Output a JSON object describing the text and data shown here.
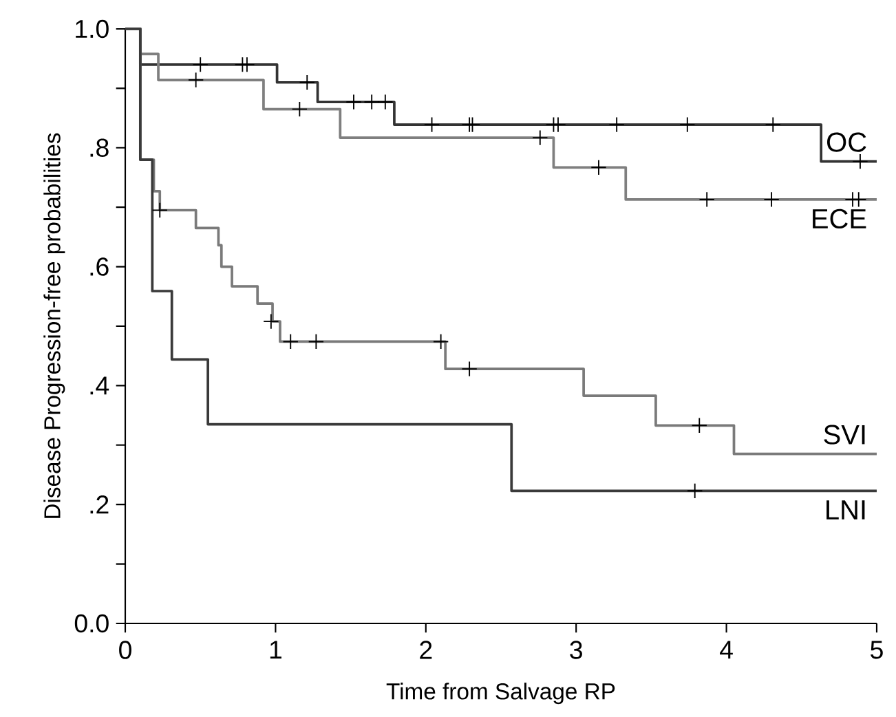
{
  "chart_data": {
    "type": "step",
    "xlabel": "Time from Salvage RP",
    "ylabel": "Disease Progression-free probabilities",
    "xlim": [
      0,
      5
    ],
    "ylim": [
      0,
      1
    ],
    "xticks": [
      0,
      1,
      2,
      3,
      4,
      5
    ],
    "yticks": [
      {
        "value": 0,
        "label": "0.0"
      },
      {
        "value": 0.1,
        "label": null
      },
      {
        "value": 0.2,
        "label": ".2"
      },
      {
        "value": 0.3,
        "label": null
      },
      {
        "value": 0.4,
        "label": ".4"
      },
      {
        "value": 0.5,
        "label": null
      },
      {
        "value": 0.6,
        "label": ".6"
      },
      {
        "value": 0.7,
        "label": null
      },
      {
        "value": 0.8,
        "label": ".8"
      },
      {
        "value": 0.9,
        "label": null
      },
      {
        "value": 1.0,
        "label": "1.0"
      }
    ],
    "grid": false,
    "series": [
      {
        "name": "OC",
        "color": "#333333",
        "x": [
          0,
          0.1,
          1.01,
          1.28,
          1.79,
          4.63,
          5
        ],
        "values": [
          1.0,
          0.94,
          0.91,
          0.877,
          0.839,
          0.777,
          0.777
        ]
      },
      {
        "name": "ECE",
        "color": "#7f7f7f",
        "x": [
          0,
          0.1,
          0.22,
          0.92,
          1.43,
          2.85,
          3.33,
          5
        ],
        "values": [
          1.0,
          0.958,
          0.914,
          0.865,
          0.817,
          0.767,
          0.713,
          0.713
        ]
      },
      {
        "name": "SVI",
        "color": "#7a7a7a",
        "x": [
          0,
          0.1,
          0.19,
          0.23,
          0.47,
          0.62,
          0.64,
          0.71,
          0.88,
          0.98,
          1.03,
          2.13,
          3.05,
          3.53,
          4.05,
          5
        ],
        "values": [
          1.0,
          0.78,
          0.727,
          0.695,
          0.665,
          0.636,
          0.6,
          0.567,
          0.538,
          0.508,
          0.474,
          0.428,
          0.383,
          0.333,
          0.285,
          0.285
        ]
      },
      {
        "name": "LNI",
        "color": "#3a3a3a",
        "x": [
          0,
          0.1,
          0.18,
          0.31,
          0.55,
          2.57,
          5
        ],
        "values": [
          1.0,
          0.78,
          0.559,
          0.444,
          0.335,
          0.223,
          0.223
        ]
      },
      {
        "type": "scatter",
        "marker": "cross",
        "color": "#000000",
        "x": [
          0.5,
          0.78,
          0.81,
          1.21,
          1.52,
          1.64,
          1.73,
          2.04,
          2.29,
          2.31,
          2.85,
          2.88,
          3.27,
          3.74,
          4.31,
          4.89
        ],
        "values": [
          0.94,
          0.94,
          0.94,
          0.91,
          0.877,
          0.877,
          0.877,
          0.839,
          0.839,
          0.839,
          0.839,
          0.839,
          0.839,
          0.839,
          0.839,
          0.777
        ]
      },
      {
        "type": "scatter",
        "marker": "cross",
        "color": "#000000",
        "x": [
          0.47,
          1.16,
          2.76,
          3.15,
          3.87,
          4.3,
          4.84,
          4.88
        ],
        "values": [
          0.914,
          0.865,
          0.817,
          0.767,
          0.713,
          0.713,
          0.713,
          0.713
        ]
      },
      {
        "type": "scatter",
        "marker": "cross",
        "color": "#000000",
        "x": [
          0.23,
          0.97,
          1.1,
          1.27,
          2.1,
          2.29,
          3.82
        ],
        "values": [
          0.695,
          0.508,
          0.474,
          0.474,
          0.474,
          0.428,
          0.333
        ]
      },
      {
        "type": "scatter",
        "marker": "cross",
        "color": "#000000",
        "x": [
          3.79
        ],
        "values": [
          0.223
        ]
      }
    ]
  }
}
